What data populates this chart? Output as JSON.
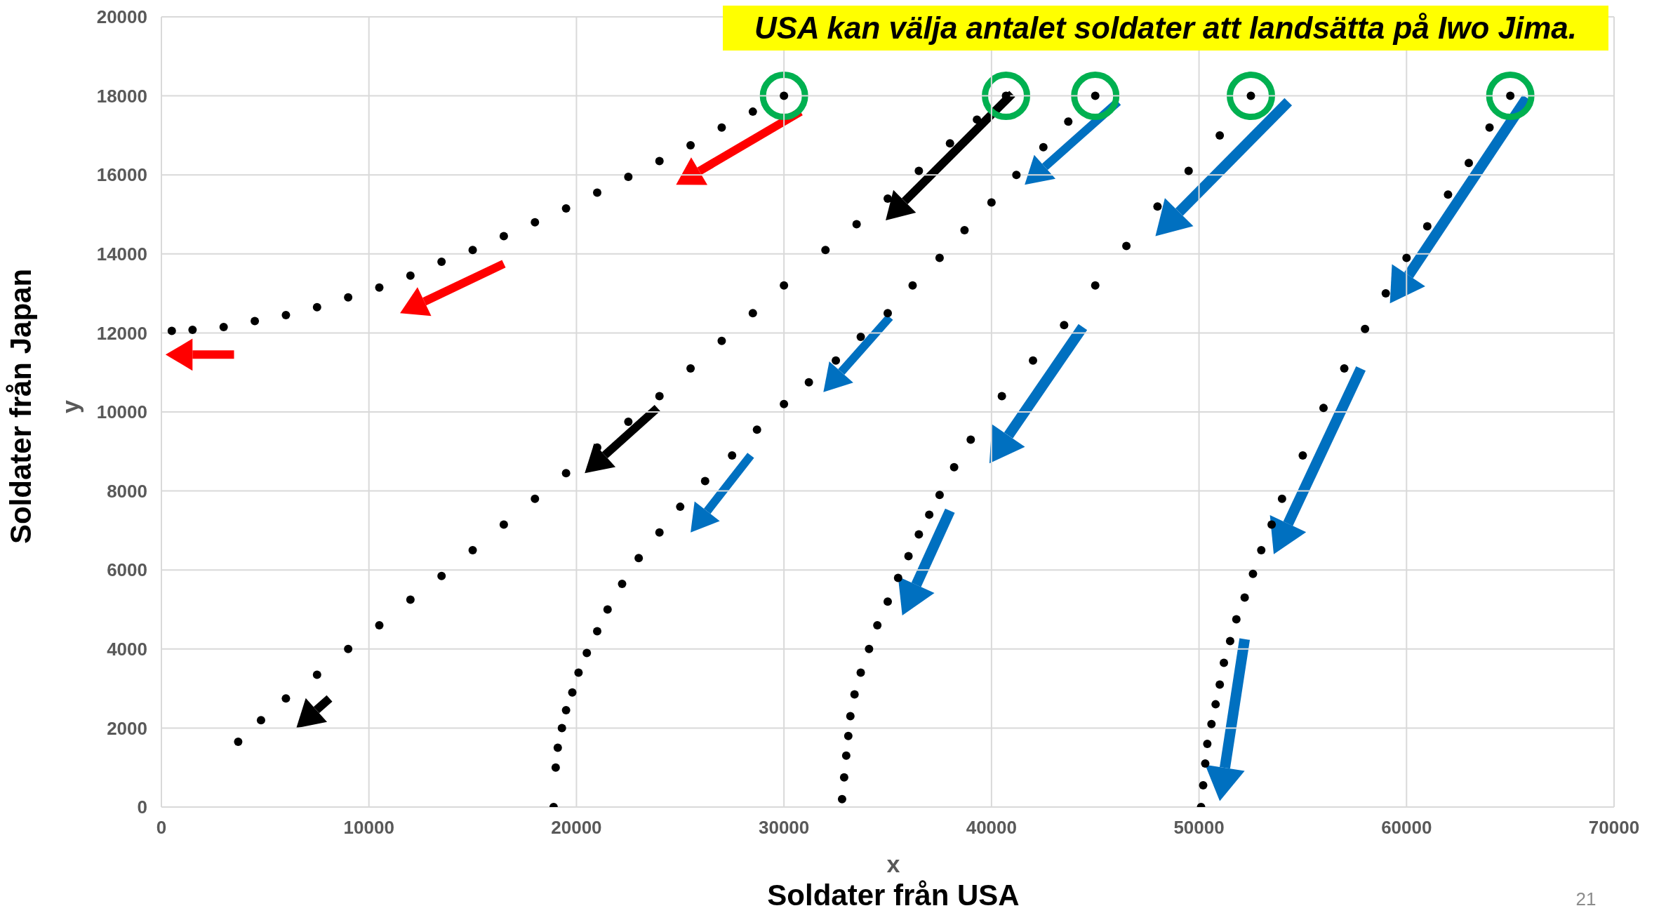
{
  "chart_data": {
    "type": "scatter",
    "title": "USA kan välja antalet soldater att landsätta på Iwo Jima.",
    "xlabel": "x",
    "ylabel": "y",
    "annotations": [
      "Soldater från USA",
      "Soldater från Japan",
      "21"
    ],
    "xlim": [
      0,
      70000
    ],
    "xticks": [
      0,
      10000,
      20000,
      30000,
      40000,
      50000,
      60000,
      70000
    ],
    "ylim": [
      0,
      20000
    ],
    "yticks": [
      0,
      2000,
      4000,
      6000,
      8000,
      10000,
      12000,
      14000,
      16000,
      18000,
      20000
    ],
    "grid": true,
    "marker": "circle",
    "series": [
      {
        "color": "#000000",
        "x": [
          30000,
          28500,
          27000,
          25500,
          24000,
          22500,
          21000,
          19500,
          18000,
          16500,
          15000,
          13500,
          12000,
          10500,
          9000,
          7500,
          6000,
          4500,
          3000,
          1500,
          500
        ],
        "values": [
          18000,
          17600,
          17200,
          16750,
          16350,
          15950,
          15550,
          15150,
          14800,
          14450,
          14100,
          13800,
          13450,
          13150,
          12900,
          12650,
          12450,
          12300,
          12150,
          12080,
          12050
        ]
      },
      {
        "color": "#000000",
        "x": [
          40700,
          39300,
          38000,
          36500,
          35000,
          33500,
          32000,
          30000,
          28500,
          27000,
          25500,
          24000,
          22500,
          21000,
          19500,
          18000,
          16500,
          15000,
          13500,
          12000,
          10500,
          9000,
          7500,
          6000,
          4800,
          3700
        ],
        "values": [
          18000,
          17400,
          16800,
          16100,
          15400,
          14750,
          14100,
          13200,
          12500,
          11800,
          11100,
          10400,
          9750,
          9100,
          8450,
          7800,
          7150,
          6500,
          5850,
          5250,
          4600,
          4000,
          3350,
          2750,
          2200,
          1650
        ]
      },
      {
        "color": "#000000",
        "x": [
          45000,
          43700,
          42500,
          41200,
          40000,
          38700,
          37500,
          36200,
          35000,
          33700,
          32500,
          31200,
          30000,
          28700,
          27500,
          26200,
          25000,
          24000,
          23000,
          22200,
          21500,
          21000,
          20500,
          20100,
          19800,
          19500,
          19300,
          19100,
          19000,
          18900
        ],
        "values": [
          18000,
          17350,
          16700,
          16000,
          15300,
          14600,
          13900,
          13200,
          12500,
          11900,
          11300,
          10750,
          10200,
          9550,
          8900,
          8250,
          7600,
          6950,
          6300,
          5650,
          5000,
          4450,
          3900,
          3400,
          2900,
          2450,
          2000,
          1500,
          1000,
          0
        ]
      },
      {
        "color": "#000000",
        "x": [
          52500,
          51000,
          49500,
          48000,
          46500,
          45000,
          43500,
          42000,
          40500,
          39000,
          38200,
          37500,
          37000,
          36500,
          36000,
          35500,
          35000,
          34500,
          34100,
          33700,
          33400,
          33200,
          33100,
          33000,
          32900,
          32800
        ],
        "values": [
          18000,
          17000,
          16100,
          15200,
          14200,
          13200,
          12200,
          11300,
          10400,
          9300,
          8600,
          7900,
          7400,
          6900,
          6350,
          5800,
          5200,
          4600,
          4000,
          3400,
          2850,
          2300,
          1800,
          1300,
          750,
          200
        ]
      },
      {
        "color": "#000000",
        "x": [
          65000,
          64000,
          63000,
          62000,
          61000,
          60000,
          59000,
          58000,
          57000,
          56000,
          55000,
          54000,
          53500,
          53000,
          52600,
          52200,
          51800,
          51500,
          51200,
          51000,
          50800,
          50600,
          50400,
          50300,
          50200,
          50100
        ],
        "values": [
          18000,
          17200,
          16300,
          15500,
          14700,
          13900,
          13000,
          12100,
          11100,
          10100,
          8900,
          7800,
          7150,
          6500,
          5900,
          5300,
          4750,
          4200,
          3650,
          3100,
          2600,
          2100,
          1600,
          1100,
          550,
          0
        ]
      }
    ]
  }
}
